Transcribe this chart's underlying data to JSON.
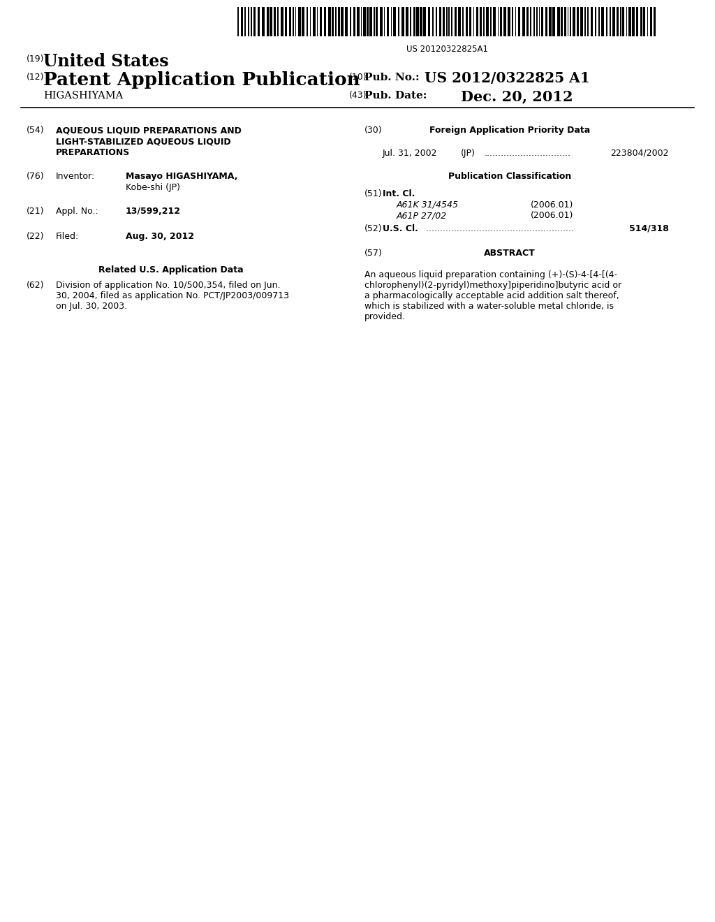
{
  "background_color": "#ffffff",
  "barcode_text": "US 20120322825A1",
  "header": {
    "number19": "(19)",
    "united_states": "United States",
    "number12": "(12)",
    "patent_app_pub": "Patent Application Publication",
    "inventor_name_header": "HIGASHIYAMA",
    "number10": "(10)",
    "pub_no_label": "Pub. No.:",
    "pub_no_value": "US 2012/0322825 A1",
    "number43": "(43)",
    "pub_date_label": "Pub. Date:",
    "pub_date_value": "Dec. 20, 2012"
  },
  "left_col": {
    "num54": "(54)",
    "title_line1": "AQUEOUS LIQUID PREPARATIONS AND",
    "title_line2": "LIGHT-STABILIZED AQUEOUS LIQUID",
    "title_line3": "PREPARATIONS",
    "num76": "(76)",
    "inventor_label": "Inventor:",
    "inventor_value1": "Masayo HIGASHIYAMA,",
    "inventor_value2": "Kobe-shi (JP)",
    "num21": "(21)",
    "appl_label": "Appl. No.:",
    "appl_value": "13/599,212",
    "num22": "(22)",
    "filed_label": "Filed:",
    "filed_value": "Aug. 30, 2012",
    "related_header": "Related U.S. Application Data",
    "num62": "(62)",
    "div_line1": "Division of application No. 10/500,354, filed on Jun.",
    "div_line2": "30, 2004, filed as application No. PCT/JP2003/009713",
    "div_line3": "on Jul. 30, 2003."
  },
  "right_col": {
    "num30": "(30)",
    "foreign_header": "Foreign Application Priority Data",
    "foreign_line": "Jul. 31, 2002    (JP) ...............................  223804/2002",
    "pub_class_header": "Publication Classification",
    "num51": "(51)",
    "int_cl_label": "Int. Cl.",
    "int_cl1_code": "A61K 31/4545",
    "int_cl1_year": "(2006.01)",
    "int_cl2_code": "A61P 27/02",
    "int_cl2_year": "(2006.01)",
    "num52": "(52)",
    "us_cl_label": "U.S. Cl.",
    "us_cl_dots": " .....................................................",
    "us_cl_value": "514/318",
    "num57": "(57)",
    "abstract_header": "ABSTRACT",
    "abstract_line1": "An aqueous liquid preparation containing (+)-(S)-4-[4-[(4-",
    "abstract_line2": "chlorophenyl)(2-pyridyl)methoxy]piperidino]butyric acid or",
    "abstract_line3": "a pharmacologically acceptable acid addition salt thereof,",
    "abstract_line4": "which is stabilized with a water-soluble metal chloride, is",
    "abstract_line5": "provided."
  }
}
